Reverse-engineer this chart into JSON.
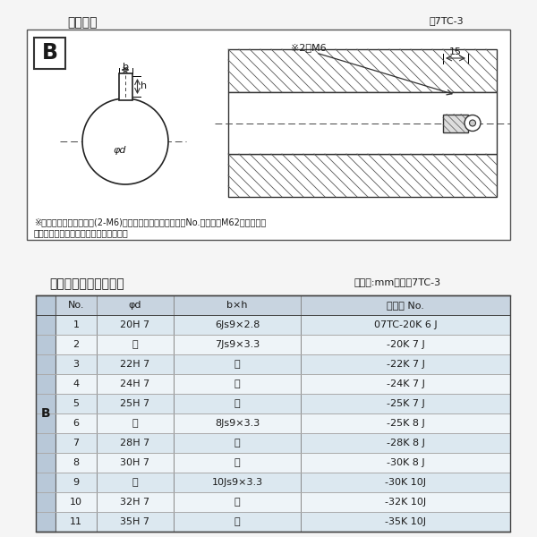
{
  "title_diagram": "軸穴形状",
  "fig_label": "図7TC-3",
  "table_title": "軸穴形状コード一覧表",
  "table_unit": "（単位:mm）　表7TC-3",
  "note_line1": "※セットボルト用タップ(2-M6)が必要な場合は右記コードNo.の末尾にM62を付ける。",
  "note_line2": "（セットボルトは付属されています。）",
  "bg_color": "#f5f5f5",
  "box_bg": "#ffffff",
  "table_header_bg": "#c8d4e0",
  "table_row_bg_odd": "#dce8f0",
  "table_row_bg_even": "#eef4f8",
  "table_b_col_bg": "#b8c8d8",
  "header_cols": [
    "No.",
    "φd",
    "b×h",
    "コード No."
  ],
  "rows": [
    [
      "1",
      "20H 7",
      "6Js9×2.8",
      "07TC-20K 6 J"
    ],
    [
      "2",
      "〃",
      "7Js9×3.3",
      "-20K 7 J"
    ],
    [
      "3",
      "22H 7",
      "〃",
      "-22K 7 J"
    ],
    [
      "4",
      "24H 7",
      "〃",
      "-24K 7 J"
    ],
    [
      "5",
      "25H 7",
      "〃",
      "-25K 7 J"
    ],
    [
      "6",
      "〃",
      "8Js9×3.3",
      "-25K 8 J"
    ],
    [
      "7",
      "28H 7",
      "〃",
      "-28K 8 J"
    ],
    [
      "8",
      "30H 7",
      "〃",
      "-30K 8 J"
    ],
    [
      "9",
      "〃",
      "10Js9×3.3",
      "-30K 10J"
    ],
    [
      "10",
      "32H 7",
      "〃",
      "-32K 10J"
    ],
    [
      "11",
      "35H 7",
      "〃",
      "-35K 10J"
    ]
  ]
}
